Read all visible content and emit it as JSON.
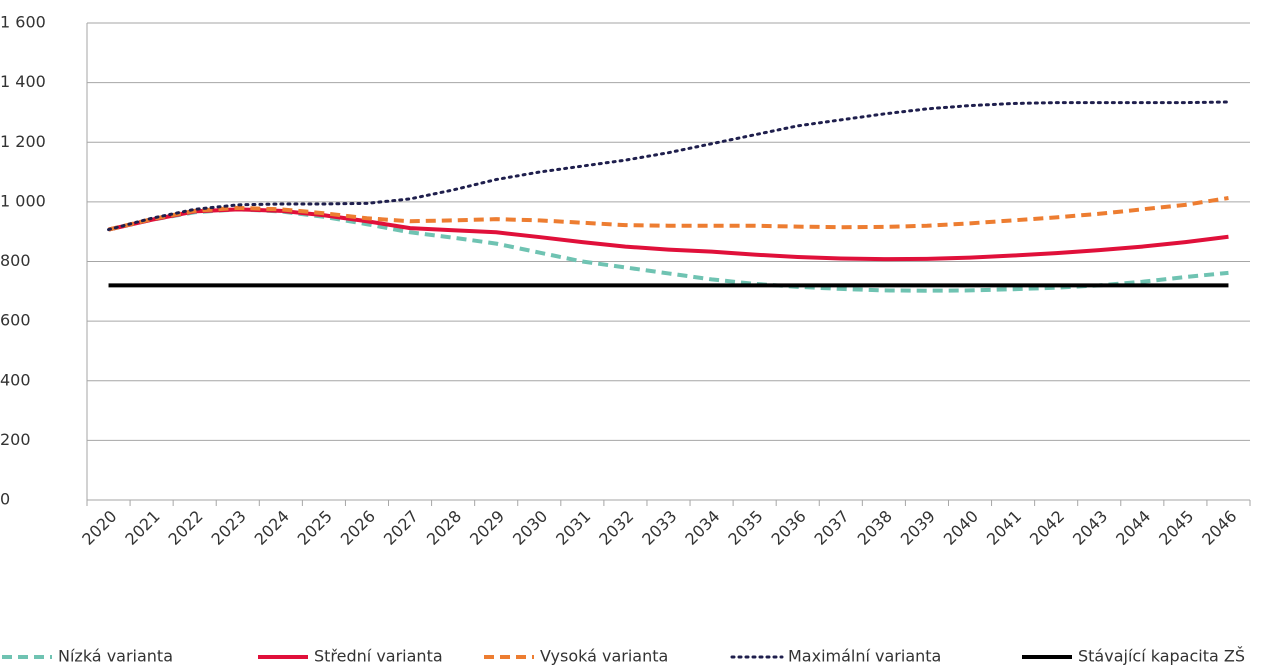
{
  "chart_data": {
    "type": "line",
    "categories": [
      "2020",
      "2021",
      "2022",
      "2023",
      "2024",
      "2025",
      "2026",
      "2027",
      "2028",
      "2029",
      "2030",
      "2031",
      "2032",
      "2033",
      "2034",
      "2035",
      "2036",
      "2037",
      "2038",
      "2039",
      "2040",
      "2041",
      "2042",
      "2043",
      "2044",
      "2045",
      "2046"
    ],
    "series": [
      {
        "name": "Nízká varianta",
        "color": "#6fc3b2",
        "dash": "dashed",
        "values": [
          907,
          940,
          965,
          975,
          968,
          950,
          925,
          898,
          880,
          860,
          830,
          800,
          780,
          760,
          740,
          725,
          715,
          708,
          703,
          702,
          703,
          707,
          712,
          720,
          732,
          748,
          762
        ]
      },
      {
        "name": "Střední varianta",
        "color": "#e0103a",
        "dash": "solid",
        "values": [
          907,
          940,
          968,
          975,
          970,
          955,
          935,
          912,
          905,
          898,
          882,
          865,
          850,
          840,
          833,
          823,
          815,
          810,
          808,
          809,
          813,
          820,
          828,
          838,
          850,
          865,
          883
        ]
      },
      {
        "name": "Vysoká varianta",
        "color": "#ed7d31",
        "dash": "dashed",
        "values": [
          907,
          942,
          970,
          980,
          975,
          962,
          945,
          935,
          938,
          942,
          938,
          930,
          922,
          920,
          920,
          920,
          917,
          915,
          916,
          920,
          928,
          938,
          948,
          960,
          975,
          990,
          1013
        ]
      },
      {
        "name": "Maximální varianta",
        "color": "#1f1f4d",
        "dash": "dotted",
        "values": [
          907,
          945,
          975,
          990,
          993,
          993,
          995,
          1010,
          1040,
          1075,
          1100,
          1120,
          1140,
          1165,
          1195,
          1225,
          1255,
          1275,
          1295,
          1312,
          1323,
          1330,
          1333,
          1333,
          1333,
          1333,
          1335
        ]
      },
      {
        "name": "Stávající kapacita ZŠ",
        "color": "#000000",
        "dash": "solid",
        "values": [
          720,
          720,
          720,
          720,
          720,
          720,
          720,
          720,
          720,
          720,
          720,
          720,
          720,
          720,
          720,
          720,
          720,
          720,
          720,
          720,
          720,
          720,
          720,
          720,
          720,
          720,
          720
        ]
      }
    ],
    "ylim": [
      0,
      1600
    ],
    "yticks": [
      0,
      200,
      400,
      600,
      800,
      {
        "value": 1000,
        "label": "1 000"
      },
      {
        "value": 1200,
        "label": "1 200"
      },
      {
        "value": 1400,
        "label": "1 400"
      },
      {
        "value": 1600,
        "label": "1 600"
      }
    ],
    "grid": true,
    "legend": "bottom"
  }
}
